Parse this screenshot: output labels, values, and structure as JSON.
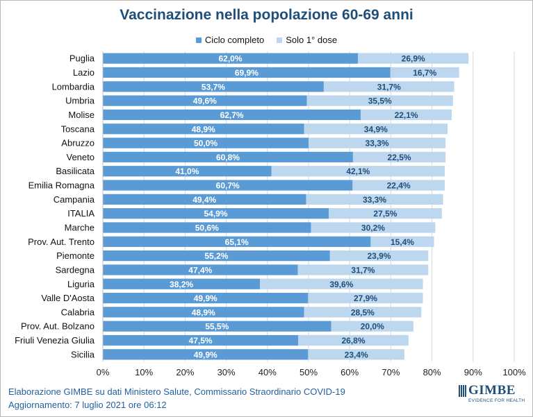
{
  "chart_data": {
    "type": "bar",
    "stacked": true,
    "orientation": "horizontal",
    "title": "Vaccinazione nella popolazione 60-69 anni",
    "categories": [
      "Puglia",
      "Lazio",
      "Lombardia",
      "Umbria",
      "Molise",
      "Toscana",
      "Abruzzo",
      "Veneto",
      "Basilicata",
      "Emilia Romagna",
      "Campania",
      "ITALIA",
      "Marche",
      "Prov. Aut. Trento",
      "Piemonte",
      "Sardegna",
      "Liguria",
      "Valle D'Aosta",
      "Calabria",
      "Prov. Aut. Bolzano",
      "Friuli Venezia Giulia",
      "Sicilia"
    ],
    "series": [
      {
        "name": "Ciclo completo",
        "color": "#5b9bd5",
        "values": [
          62.0,
          69.9,
          53.7,
          49.6,
          62.7,
          48.9,
          50.0,
          60.8,
          41.0,
          60.7,
          49.4,
          54.9,
          50.6,
          65.1,
          55.2,
          47.4,
          38.2,
          49.9,
          48.9,
          55.5,
          47.5,
          49.9
        ],
        "labels": [
          "62,0%",
          "69,9%",
          "53,7%",
          "49,6%",
          "62,7%",
          "48,9%",
          "50,0%",
          "60,8%",
          "41,0%",
          "60,7%",
          "49,4%",
          "54,9%",
          "50,6%",
          "65,1%",
          "55,2%",
          "47,4%",
          "38,2%",
          "49,9%",
          "48,9%",
          "55,5%",
          "47,5%",
          "49,9%"
        ]
      },
      {
        "name": "Solo 1° dose",
        "color": "#bdd7ee",
        "values": [
          26.9,
          16.7,
          31.7,
          35.5,
          22.1,
          34.9,
          33.3,
          22.5,
          42.1,
          22.4,
          33.3,
          27.5,
          30.2,
          15.4,
          23.9,
          31.7,
          39.6,
          27.9,
          28.5,
          20.0,
          26.8,
          23.4
        ],
        "labels": [
          "26,9%",
          "16,7%",
          "31,7%",
          "35,5%",
          "22,1%",
          "34,9%",
          "33,3%",
          "22,5%",
          "42,1%",
          "22,4%",
          "33,3%",
          "27,5%",
          "30,2%",
          "15,4%",
          "23,9%",
          "31,7%",
          "39,6%",
          "27,9%",
          "28,5%",
          "20,0%",
          "26,8%",
          "23,4%"
        ]
      }
    ],
    "xlim": [
      0,
      100
    ],
    "x_ticks": [
      "0%",
      "10%",
      "20%",
      "30%",
      "40%",
      "50%",
      "60%",
      "70%",
      "80%",
      "90%",
      "100%"
    ],
    "grid": true,
    "legend_position": "top"
  },
  "footer": {
    "line1": "Elaborazione GIMBE su dati Ministero Salute, Commissario Straordinario COVID-19",
    "line2": "Aggiornamento: 7 luglio 2021 ore 06:12"
  },
  "logo": {
    "name": "GIMBE",
    "tagline": "EVIDENCE FOR HEALTH"
  }
}
